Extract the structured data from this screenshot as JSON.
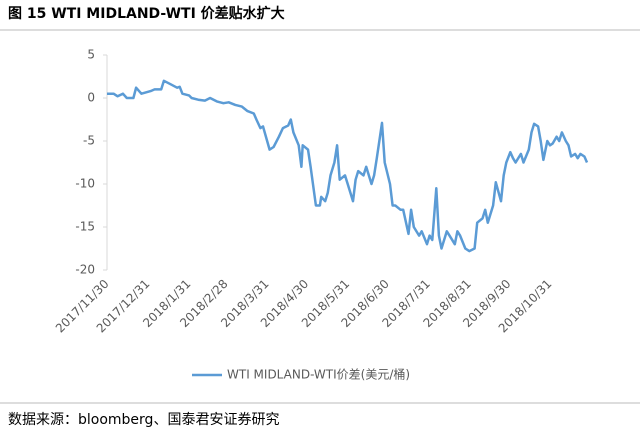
{
  "chart_data": {
    "type": "line",
    "title": "图 15 WTI MIDLAND-WTI 价差贴水扩大",
    "source": "数据来源：bloomberg、国泰君安证券研究",
    "x": [
      "2017/11/30",
      "2017/12/05",
      "2017/12/08",
      "2017/12/12",
      "2017/12/15",
      "2017/12/20",
      "2017/12/22",
      "2017/12/26",
      "2018/01/02",
      "2018/01/05",
      "2018/01/10",
      "2018/01/12",
      "2018/01/17",
      "2018/01/22",
      "2018/01/24",
      "2018/01/26",
      "2018/01/31",
      "2018/02/02",
      "2018/02/07",
      "2018/02/12",
      "2018/02/16",
      "2018/02/21",
      "2018/02/26",
      "2018/03/02",
      "2018/03/07",
      "2018/03/12",
      "2018/03/16",
      "2018/03/21",
      "2018/03/23",
      "2018/03/26",
      "2018/03/28",
      "2018/04/02",
      "2018/04/05",
      "2018/04/09",
      "2018/04/12",
      "2018/04/16",
      "2018/04/18",
      "2018/04/20",
      "2018/04/24",
      "2018/04/26",
      "2018/04/27",
      "2018/05/01",
      "2018/05/03",
      "2018/05/07",
      "2018/05/10",
      "2018/05/11",
      "2018/05/14",
      "2018/05/16",
      "2018/05/18",
      "2018/05/21",
      "2018/05/23",
      "2018/05/25",
      "2018/05/29",
      "2018/05/31",
      "2018/06/04",
      "2018/06/06",
      "2018/06/08",
      "2018/06/12",
      "2018/06/14",
      "2018/06/18",
      "2018/06/20",
      "2018/06/22",
      "2018/06/26",
      "2018/06/28",
      "2018/07/02",
      "2018/07/04",
      "2018/07/06",
      "2018/07/10",
      "2018/07/12",
      "2018/07/16",
      "2018/07/18",
      "2018/07/20",
      "2018/07/24",
      "2018/07/26",
      "2018/07/30",
      "2018/08/01",
      "2018/08/03",
      "2018/08/06",
      "2018/08/08",
      "2018/08/10",
      "2018/08/14",
      "2018/08/16",
      "2018/08/20",
      "2018/08/22",
      "2018/08/24",
      "2018/08/28",
      "2018/08/31",
      "2018/09/04",
      "2018/09/06",
      "2018/09/10",
      "2018/09/12",
      "2018/09/14",
      "2018/09/18",
      "2018/09/20",
      "2018/09/24",
      "2018/09/26",
      "2018/09/28",
      "2018/10/01",
      "2018/10/03",
      "2018/10/05",
      "2018/10/09",
      "2018/10/11",
      "2018/10/15",
      "2018/10/17",
      "2018/10/19",
      "2018/10/22",
      "2018/10/24",
      "2018/10/26",
      "2018/10/29",
      "2018/10/31",
      "2018/11/02",
      "2018/11/05",
      "2018/11/07",
      "2018/11/09",
      "2018/11/12",
      "2018/11/14",
      "2018/11/16",
      "2018/11/19",
      "2018/11/21",
      "2018/11/23",
      "2018/11/26",
      "2018/11/28"
    ],
    "series": [
      {
        "name": "WTI MIDLAND-WTI价差(美元/桶)",
        "color": "#5b9bd5",
        "values": [
          0.5,
          0.5,
          0.2,
          0.5,
          0,
          0,
          1.2,
          0.5,
          0.8,
          1.0,
          1.0,
          2.0,
          1.6,
          1.2,
          1.3,
          0.5,
          0.3,
          0,
          -0.2,
          -0.3,
          0,
          -0.4,
          -0.6,
          -0.5,
          -0.8,
          -1.0,
          -1.5,
          -1.8,
          -2.5,
          -3.5,
          -3.3,
          -6,
          -5.7,
          -4.5,
          -3.5,
          -3.2,
          -2.5,
          -4,
          -5.5,
          -8,
          -5.5,
          -6,
          -8,
          -12.5,
          -12.5,
          -11.5,
          -12,
          -11,
          -9,
          -7.5,
          -5.5,
          -9.5,
          -9,
          -10,
          -12,
          -9.5,
          -8.5,
          -9,
          -8,
          -10,
          -9,
          -7,
          -2.9,
          -7.5,
          -10,
          -12.5,
          -12.5,
          -13,
          -13,
          -15.8,
          -13,
          -15,
          -16,
          -15.5,
          -17,
          -16,
          -16.5,
          -10.5,
          -16,
          -17.5,
          -15.5,
          -16,
          -17,
          -15.5,
          -16,
          -17.5,
          -17.8,
          -17.5,
          -14.5,
          -14,
          -13,
          -14.5,
          -12.5,
          -9.8,
          -12,
          -9,
          -7.5,
          -6.3,
          -7,
          -7.5,
          -6.5,
          -7.5,
          -6,
          -4,
          -3,
          -3.3,
          -5,
          -7.2,
          -5,
          -5.5,
          -5.3,
          -4.5,
          -5,
          -4,
          -5,
          -5.5,
          -6.8,
          -6.5,
          -7,
          -6.5,
          -6.8,
          -7.5
        ]
      }
    ],
    "xlim": [
      "2017/11/30",
      "2018/11/28"
    ],
    "xticks": [
      "2017/11/30",
      "2017/12/31",
      "2018/1/31",
      "2018/2/28",
      "2018/3/31",
      "2018/4/30",
      "2018/5/31",
      "2018/6/30",
      "2018/7/31",
      "2018/8/31",
      "2018/9/30",
      "2018/10/31"
    ],
    "ylim": [
      -20,
      5
    ],
    "yticks": [
      5,
      0,
      -5,
      -10,
      -15,
      -20
    ],
    "grid": false,
    "legend": "bottom"
  }
}
